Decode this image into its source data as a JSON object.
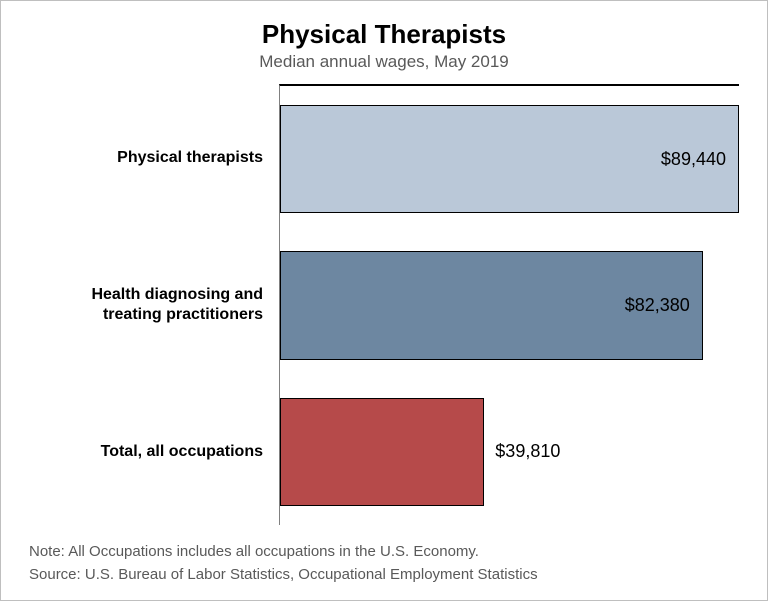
{
  "chart": {
    "type": "bar-horizontal",
    "title": "Physical Therapists",
    "title_fontsize": 26,
    "subtitle": "Median annual wages, May 2019",
    "subtitle_fontsize": 17,
    "subtitle_color": "#595959",
    "background_color": "#ffffff",
    "frame_border_color": "#bfbfbf",
    "axis_line_color": "#808080",
    "top_axis_color": "#000000",
    "x_max": 89440,
    "bar_border_color": "#000000",
    "bar_height_pct": 74,
    "label_fontsize": 16,
    "value_label_fontsize": 18,
    "categories": [
      {
        "label": "Physical therapists",
        "value": 89440,
        "value_label": "$89,440",
        "bar_color": "#bac8d8"
      },
      {
        "label": "Health diagnosing and treating practitioners",
        "value": 82380,
        "value_label": "$82,380",
        "bar_color": "#6d87a1"
      },
      {
        "label": "Total, all occupations",
        "value": 39810,
        "value_label": "$39,810",
        "bar_color": "#b64a4a"
      }
    ],
    "note": "Note: All Occupations includes all occupations in the U.S. Economy.",
    "source": "Source: U.S. Bureau of Labor Statistics, Occupational Employment Statistics",
    "footnote_fontsize": 15,
    "footnote_color": "#595959"
  }
}
